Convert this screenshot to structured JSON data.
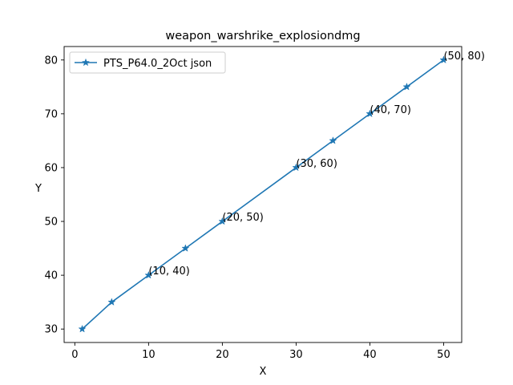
{
  "chart_data": {
    "type": "line",
    "title": "weapon_warshrike_explosiondmg",
    "xlabel": "X",
    "ylabel": "Y",
    "xlim": [
      -1.45,
      52.45
    ],
    "ylim": [
      27.5,
      82.5
    ],
    "xticks": [
      0,
      10,
      20,
      30,
      40,
      50
    ],
    "yticks": [
      30,
      40,
      50,
      60,
      70,
      80
    ],
    "grid": false,
    "legend_position": "top-left",
    "series": [
      {
        "name": "PTS_P64.0_2Oct json",
        "color": "#1f77b4",
        "marker": "star",
        "x": [
          1,
          5,
          10,
          15,
          20,
          30,
          35,
          40,
          45,
          50
        ],
        "y": [
          30,
          35,
          40,
          45,
          50,
          60,
          65,
          70,
          75,
          80
        ]
      }
    ],
    "annotations": [
      {
        "x": 10,
        "y": 40,
        "text": "(10, 40)"
      },
      {
        "x": 20,
        "y": 50,
        "text": "(20, 50)"
      },
      {
        "x": 30,
        "y": 60,
        "text": "(30, 60)"
      },
      {
        "x": 40,
        "y": 70,
        "text": "(40, 70)"
      },
      {
        "x": 50,
        "y": 80,
        "text": "(50, 80)"
      }
    ]
  }
}
